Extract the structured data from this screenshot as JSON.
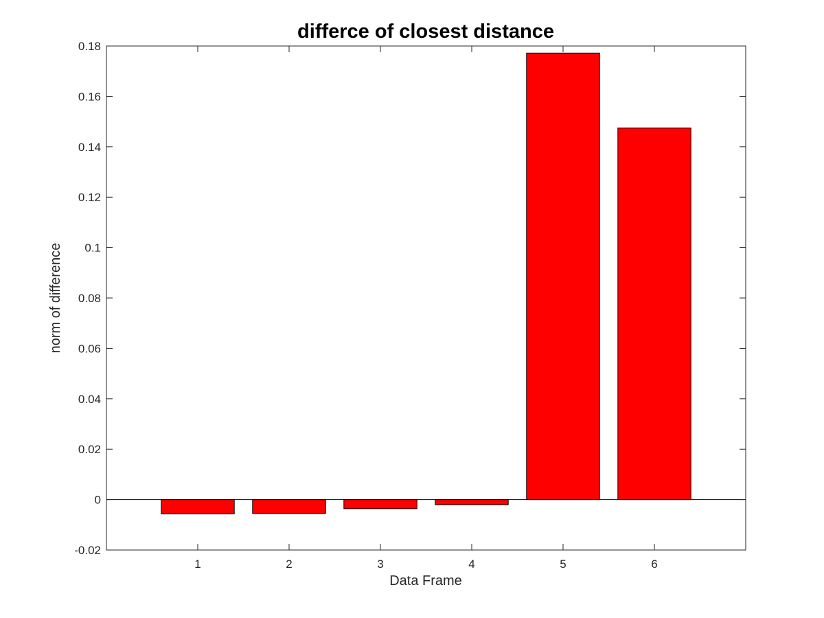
{
  "chart_data": {
    "type": "bar",
    "title": "differce of closest distance",
    "xlabel": "Data Frame",
    "ylabel": "norm of difference",
    "categories": [
      "1",
      "2",
      "3",
      "4",
      "5",
      "6"
    ],
    "values": [
      -0.0057,
      -0.0055,
      -0.0036,
      -0.002,
      0.1772,
      0.1475
    ],
    "xlim": [
      0,
      7
    ],
    "ylim": [
      -0.02,
      0.18
    ],
    "yticks": [
      -0.02,
      0,
      0.02,
      0.04,
      0.06,
      0.08,
      0.1,
      0.12,
      0.14,
      0.16,
      0.18
    ],
    "ytick_labels": [
      "-0.02",
      "0",
      "0.02",
      "0.04",
      "0.06",
      "0.08",
      "0.1",
      "0.12",
      "0.14",
      "0.16",
      "0.18"
    ],
    "bar_color": "#ff0000",
    "bar_edge_color": "#000000",
    "grid": false,
    "box": true
  }
}
